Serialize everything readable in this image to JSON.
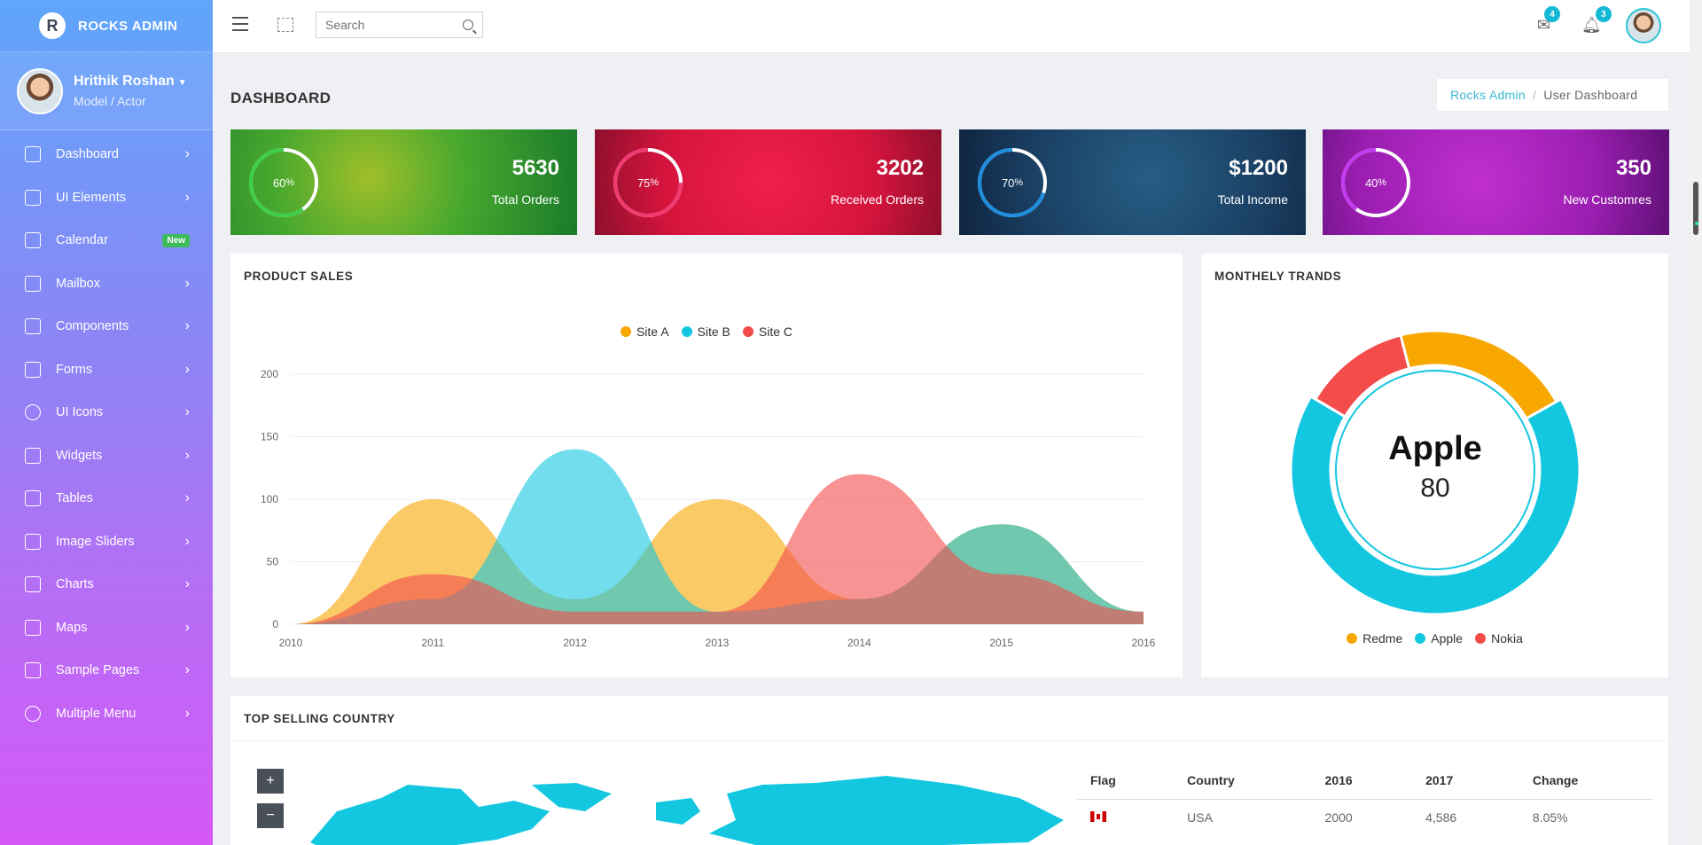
{
  "brand": {
    "logo_letter": "R",
    "name": "ROCKS ADMIN"
  },
  "profile": {
    "name": "Hrithik Roshan",
    "role": "Model / Actor"
  },
  "sidebar": {
    "items": [
      {
        "label": "Dashboard",
        "icon": "home-icon"
      },
      {
        "label": "UI Elements",
        "icon": "briefcase-icon"
      },
      {
        "label": "Calendar",
        "icon": "calendar-icon",
        "badge": "New"
      },
      {
        "label": "Mailbox",
        "icon": "mail-icon"
      },
      {
        "label": "Components",
        "icon": "layers-icon"
      },
      {
        "label": "Forms",
        "icon": "edit-icon"
      },
      {
        "label": "UI Icons",
        "icon": "flame-icon"
      },
      {
        "label": "Widgets",
        "icon": "widget-icon"
      },
      {
        "label": "Tables",
        "icon": "grid-icon"
      },
      {
        "label": "Image Sliders",
        "icon": "image-icon"
      },
      {
        "label": "Charts",
        "icon": "bar-chart-icon"
      },
      {
        "label": "Maps",
        "icon": "map-icon"
      },
      {
        "label": "Sample Pages",
        "icon": "folder-icon"
      },
      {
        "label": "Multiple Menu",
        "icon": "globe-icon"
      }
    ]
  },
  "topbar": {
    "search_placeholder": "Search",
    "mail_count": "4",
    "notification_count": "3"
  },
  "page": {
    "title": "DASHBOARD",
    "breadcrumb": {
      "link": "Rocks Admin",
      "separator": "/",
      "current": "User Dashboard"
    }
  },
  "stats": [
    {
      "percent": 60,
      "value": "5630",
      "label": "Total Orders",
      "color": "#3ecf4a"
    },
    {
      "percent": 75,
      "value": "3202",
      "label": "Received Orders",
      "color": "#f23a71"
    },
    {
      "percent": 70,
      "value": "$1200",
      "label": "Total Income",
      "color": "#1e8fe0"
    },
    {
      "percent": 40,
      "value": "350",
      "label": "New Customres",
      "color": "#c43af0"
    }
  ],
  "product_sales": {
    "title": "PRODUCT SALES",
    "chart_data": {
      "type": "area",
      "x": [
        2010,
        2011,
        2012,
        2013,
        2014,
        2015,
        2016
      ],
      "series": [
        {
          "name": "Site A",
          "color": "#f7a700",
          "values": [
            0,
            100,
            20,
            100,
            20,
            80,
            10
          ]
        },
        {
          "name": "Site B",
          "color": "#14c7e0",
          "values": [
            0,
            20,
            140,
            10,
            20,
            80,
            10
          ]
        },
        {
          "name": "Site C",
          "color": "#f44b4b",
          "values": [
            0,
            40,
            10,
            10,
            120,
            40,
            10
          ]
        }
      ],
      "ylim": [
        0,
        200
      ],
      "yticks": [
        0,
        50,
        100,
        150,
        200
      ],
      "grid": true,
      "legend": "top"
    }
  },
  "monthly_trends": {
    "title": "MONTHELY TRANDS",
    "center_label": "Apple",
    "center_value": "80",
    "chart_data": {
      "type": "pie",
      "categories": [
        "Redme",
        "Apple",
        "Nokia"
      ],
      "values": [
        25,
        80,
        15
      ],
      "colors": [
        "#f7a700",
        "#14c7e0",
        "#f44b4b"
      ],
      "legend": "bottom"
    }
  },
  "top_selling": {
    "title": "TOP SELLING COUNTRY",
    "zoom_in": "+",
    "zoom_out": "−",
    "columns": [
      "Flag",
      "Country",
      "2016",
      "2017",
      "Change"
    ],
    "rows": [
      {
        "country": "USA",
        "y2016": "2000",
        "y2017": "4,586",
        "change": "8.05%"
      }
    ]
  }
}
